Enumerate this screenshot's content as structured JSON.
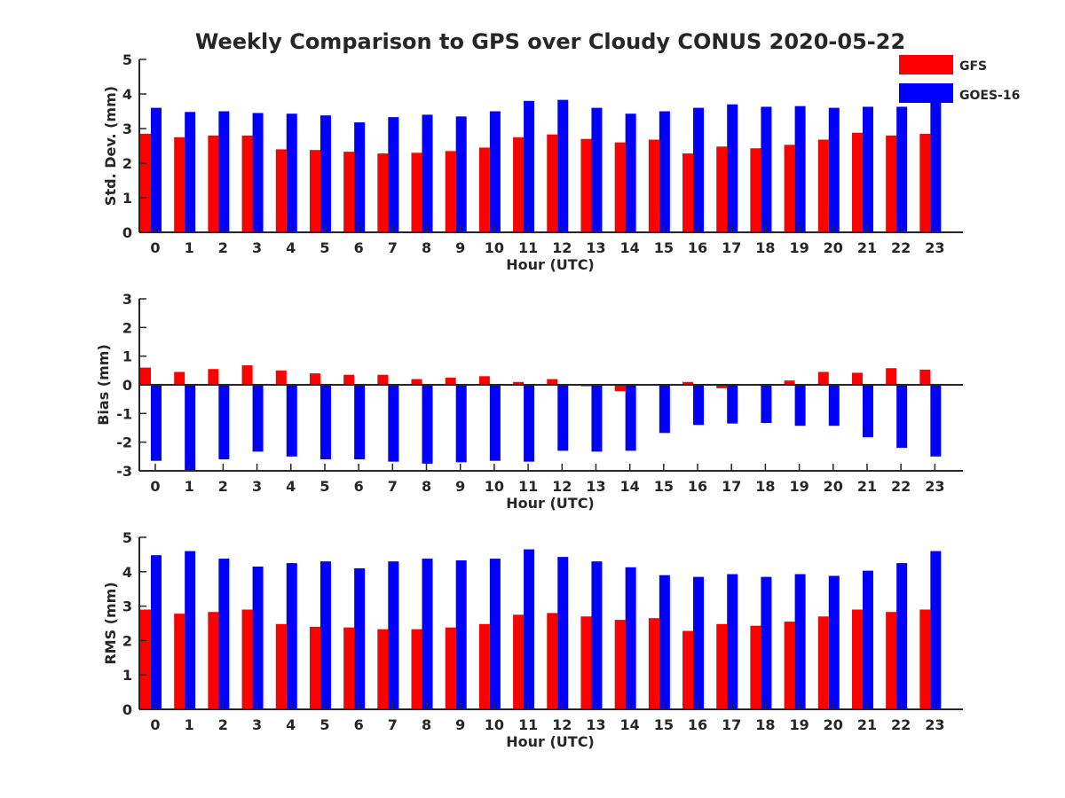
{
  "title": "Weekly Comparison to GPS over Cloudy CONUS 2020-05-22",
  "legend": {
    "position": "top-right",
    "entries": [
      {
        "label": "GFS",
        "color": "#ff0000"
      },
      {
        "label": "GOES-16",
        "color": "#0000ff"
      }
    ]
  },
  "chart_data": [
    {
      "type": "bar",
      "title": "",
      "xlabel": "Hour (UTC)",
      "ylabel": "Std. Dev. (mm)",
      "ylim": [
        0,
        5
      ],
      "yticks": [
        0,
        1,
        2,
        3,
        4,
        5
      ],
      "grid": false,
      "categories": [
        "0",
        "1",
        "2",
        "3",
        "4",
        "5",
        "6",
        "7",
        "8",
        "9",
        "10",
        "11",
        "12",
        "13",
        "14",
        "15",
        "16",
        "17",
        "18",
        "19",
        "20",
        "21",
        "22",
        "23"
      ],
      "series": [
        {
          "name": "GFS",
          "color": "#ff0000",
          "values": [
            2.85,
            2.75,
            2.8,
            2.8,
            2.4,
            2.38,
            2.33,
            2.28,
            2.3,
            2.35,
            2.45,
            2.75,
            2.83,
            2.7,
            2.6,
            2.68,
            2.28,
            2.48,
            2.43,
            2.53,
            2.68,
            2.88,
            2.8,
            2.85
          ]
        },
        {
          "name": "GOES-16",
          "color": "#0000ff",
          "values": [
            3.6,
            3.48,
            3.5,
            3.45,
            3.43,
            3.38,
            3.18,
            3.33,
            3.4,
            3.35,
            3.5,
            3.8,
            3.83,
            3.6,
            3.43,
            3.5,
            3.6,
            3.7,
            3.63,
            3.65,
            3.6,
            3.63,
            3.63,
            3.98
          ]
        }
      ]
    },
    {
      "type": "bar",
      "title": "",
      "xlabel": "Hour (UTC)",
      "ylabel": "Bias (mm)",
      "ylim": [
        -3,
        3
      ],
      "yticks": [
        -3,
        -2,
        -1,
        0,
        1,
        2,
        3
      ],
      "grid": false,
      "zero_line": true,
      "categories": [
        "0",
        "1",
        "2",
        "3",
        "4",
        "5",
        "6",
        "7",
        "8",
        "9",
        "10",
        "11",
        "12",
        "13",
        "14",
        "15",
        "16",
        "17",
        "18",
        "19",
        "20",
        "21",
        "22",
        "23"
      ],
      "series": [
        {
          "name": "GFS",
          "color": "#ff0000",
          "values": [
            0.6,
            0.45,
            0.55,
            0.68,
            0.5,
            0.4,
            0.35,
            0.35,
            0.2,
            0.25,
            0.3,
            0.1,
            0.2,
            -0.05,
            -0.22,
            0.0,
            0.1,
            -0.12,
            0.02,
            0.15,
            0.45,
            0.42,
            0.58,
            0.53
          ]
        },
        {
          "name": "GOES-16",
          "color": "#0000ff",
          "values": [
            -2.65,
            -3.0,
            -2.6,
            -2.33,
            -2.5,
            -2.6,
            -2.6,
            -2.68,
            -2.75,
            -2.7,
            -2.65,
            -2.68,
            -2.3,
            -2.33,
            -2.3,
            -1.68,
            -1.4,
            -1.35,
            -1.33,
            -1.43,
            -1.43,
            -1.83,
            -2.2,
            -2.5
          ]
        }
      ]
    },
    {
      "type": "bar",
      "title": "",
      "xlabel": "Hour (UTC)",
      "ylabel": "RMS (mm)",
      "ylim": [
        0,
        5
      ],
      "yticks": [
        0,
        1,
        2,
        3,
        4,
        5
      ],
      "grid": false,
      "categories": [
        "0",
        "1",
        "2",
        "3",
        "4",
        "5",
        "6",
        "7",
        "8",
        "9",
        "10",
        "11",
        "12",
        "13",
        "14",
        "15",
        "16",
        "17",
        "18",
        "19",
        "20",
        "21",
        "22",
        "23"
      ],
      "series": [
        {
          "name": "GFS",
          "color": "#ff0000",
          "values": [
            2.9,
            2.78,
            2.83,
            2.9,
            2.48,
            2.4,
            2.38,
            2.33,
            2.33,
            2.38,
            2.48,
            2.75,
            2.8,
            2.7,
            2.6,
            2.65,
            2.28,
            2.48,
            2.43,
            2.55,
            2.7,
            2.9,
            2.83,
            2.9
          ]
        },
        {
          "name": "GOES-16",
          "color": "#0000ff",
          "values": [
            4.48,
            4.6,
            4.38,
            4.15,
            4.25,
            4.3,
            4.1,
            4.3,
            4.38,
            4.33,
            4.38,
            4.65,
            4.43,
            4.3,
            4.13,
            3.9,
            3.85,
            3.93,
            3.85,
            3.93,
            3.88,
            4.03,
            4.25,
            4.6
          ]
        }
      ]
    }
  ]
}
